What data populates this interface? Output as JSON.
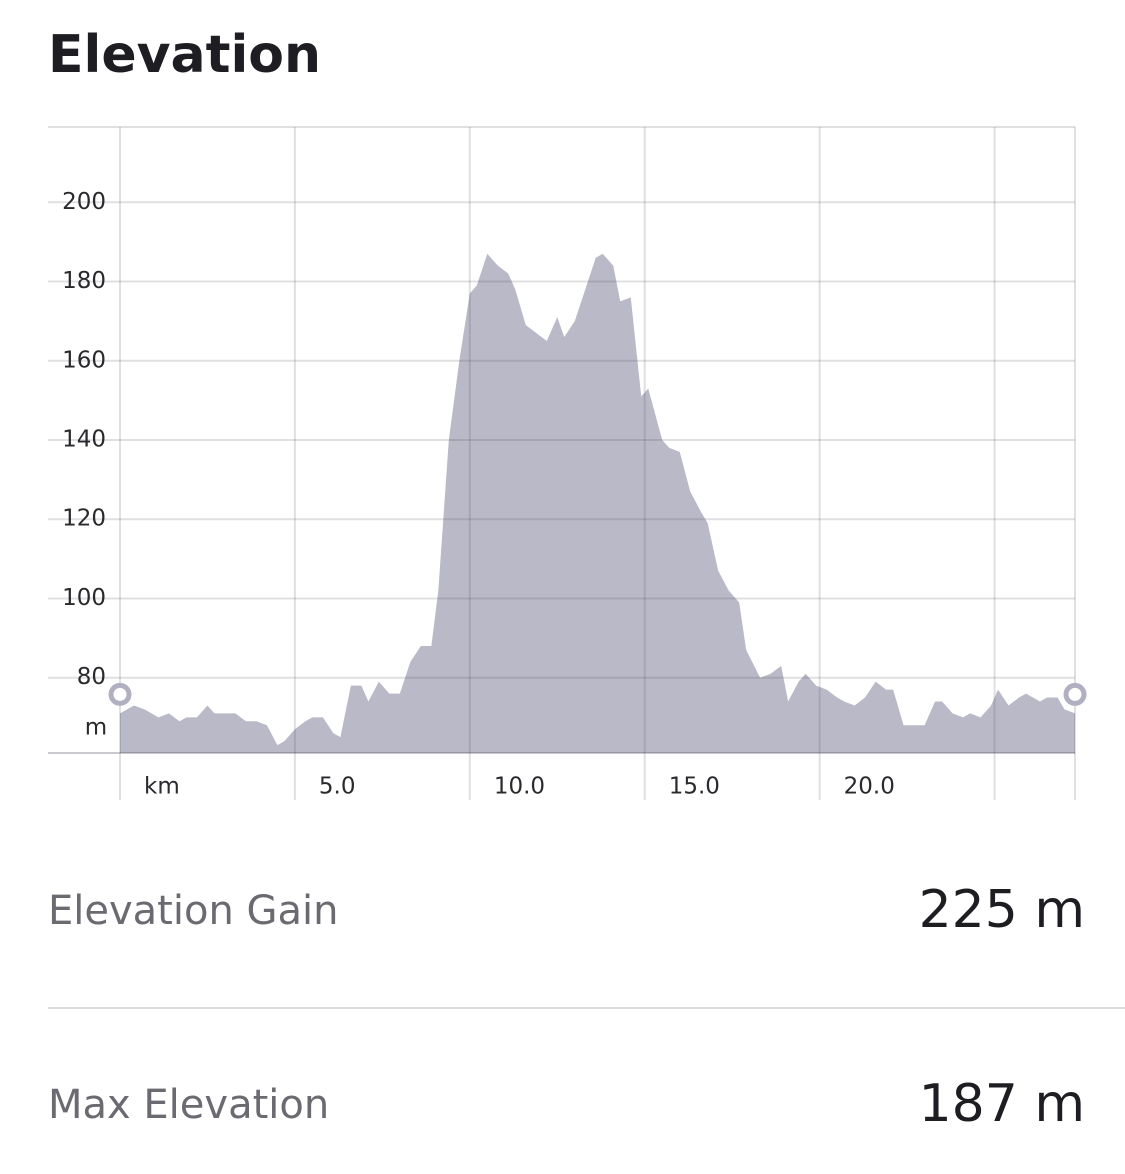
{
  "header": {
    "title": "Elevation"
  },
  "chart_data": {
    "type": "area",
    "color": "#b9b9c7",
    "grid": true,
    "y_unit": "m",
    "xlim": [
      0,
      27.3
    ],
    "ylim": [
      61,
      219
    ],
    "xticks": [
      {
        "value": 0,
        "label": "km"
      },
      {
        "value": 5,
        "label": "5.0"
      },
      {
        "value": 10,
        "label": "10.0"
      },
      {
        "value": 15,
        "label": "15.0"
      },
      {
        "value": 20,
        "label": "20.0"
      },
      {
        "value": 25,
        "label": null
      }
    ],
    "yticks": [
      80,
      100,
      120,
      140,
      160,
      180,
      200
    ],
    "x": [
      0,
      0.4,
      0.7,
      1.1,
      1.4,
      1.7,
      1.9,
      2.2,
      2.5,
      2.7,
      3.0,
      3.3,
      3.6,
      3.9,
      4.2,
      4.5,
      4.7,
      5.0,
      5.3,
      5.5,
      5.8,
      6.1,
      6.3,
      6.6,
      6.9,
      7.1,
      7.4,
      7.7,
      8.0,
      8.3,
      8.6,
      8.9,
      9.1,
      9.4,
      9.7,
      10.0,
      10.2,
      10.5,
      10.8,
      11.1,
      11.3,
      11.6,
      11.9,
      12.2,
      12.5,
      12.7,
      13.0,
      13.3,
      13.6,
      13.8,
      14.1,
      14.3,
      14.6,
      14.9,
      15.1,
      15.5,
      15.7,
      16.0,
      16.3,
      16.6,
      16.8,
      17.1,
      17.4,
      17.7,
      17.9,
      18.3,
      18.6,
      18.9,
      19.1,
      19.4,
      19.6,
      19.9,
      20.2,
      20.5,
      20.7,
      21.0,
      21.3,
      21.6,
      21.9,
      22.1,
      22.4,
      22.7,
      23.0,
      23.3,
      23.5,
      23.8,
      24.1,
      24.3,
      24.6,
      24.9,
      25.1,
      25.4,
      25.7,
      25.9,
      26.3,
      26.5,
      26.8,
      27.0,
      27.3
    ],
    "values": [
      71,
      73,
      72,
      70,
      71,
      69,
      70,
      70,
      73,
      71,
      71,
      71,
      69,
      69,
      68,
      63,
      64,
      67,
      69,
      70,
      70,
      66,
      65,
      78,
      78,
      74,
      79,
      76,
      76,
      84,
      88,
      88,
      102,
      140,
      160,
      177,
      179,
      187,
      184,
      182,
      178,
      169,
      167,
      165,
      171,
      166,
      170,
      178,
      186,
      187,
      184,
      175,
      176,
      151,
      153,
      140,
      138,
      137,
      127,
      122,
      119,
      107,
      102,
      99,
      87,
      80,
      81,
      83,
      74,
      79,
      81,
      78,
      77,
      75,
      74,
      73,
      75,
      79,
      77,
      77,
      68,
      68,
      68,
      74,
      74,
      71,
      70,
      71,
      70,
      73,
      77,
      73,
      75,
      76,
      74,
      75,
      75,
      72,
      71
    ]
  },
  "stats": [
    {
      "label": "Elevation Gain",
      "value": "225 m"
    },
    {
      "label": "Max Elevation",
      "value": "187 m"
    }
  ]
}
